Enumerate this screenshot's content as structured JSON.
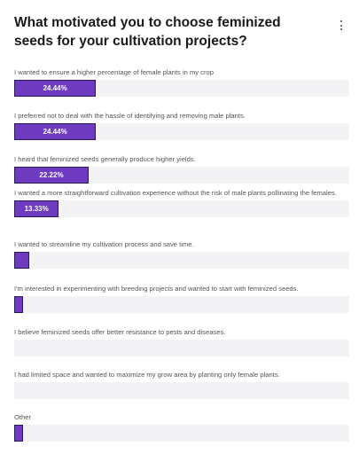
{
  "chart_data": {
    "type": "bar",
    "title": "What motivated you to choose feminized seeds for your cultivation projects?",
    "categories": [
      "I wanted to ensure a higher percentage of female plants in my crop",
      "I preferred not to deal with the hassle of identifying and removing male plants.",
      "I heard that feminized seeds generally produce higher yields.",
      "I wanted a more straightforward cultivation experience without the risk of male plants pollinating the females.",
      "I wanted to streamline my cultivation process and save time.",
      "I'm interested in experimenting with breeding projects and wanted to start with feminized seeds.",
      "I believe feminized seeds offer better resistance to pests and diseases.",
      "I had limited space and wanted to maximize my grow area by planting only female plants.",
      "Other"
    ],
    "values": [
      24.44,
      24.44,
      22.22,
      13.33,
      4.44,
      1.11,
      0,
      0,
      2.22
    ],
    "data_labels": [
      "24.44%",
      "24.44%",
      "22.22%",
      "13.33%",
      "",
      "",
      "",
      "",
      ""
    ],
    "xlim": [
      0,
      100
    ],
    "bar_color": "#6e3bc0",
    "track_color": "#f3f3f5"
  }
}
